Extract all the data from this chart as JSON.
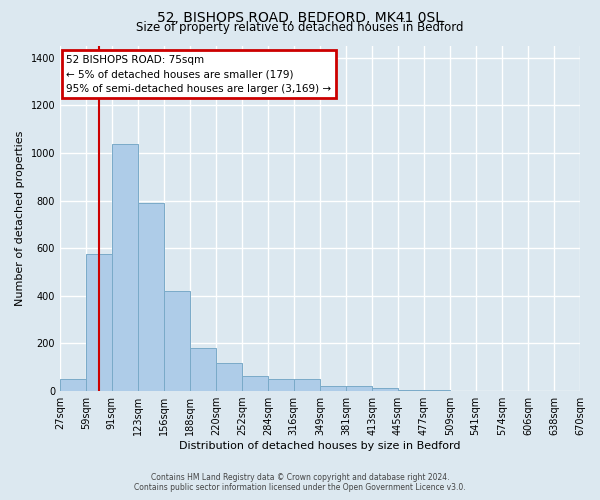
{
  "title1": "52, BISHOPS ROAD, BEDFORD, MK41 0SL",
  "title2": "Size of property relative to detached houses in Bedford",
  "xlabel": "Distribution of detached houses by size in Bedford",
  "ylabel": "Number of detached properties",
  "bin_edges": [
    27,
    59,
    91,
    123,
    156,
    188,
    220,
    252,
    284,
    316,
    349,
    381,
    413,
    445,
    477,
    509,
    541,
    574,
    606,
    638,
    670
  ],
  "bar_heights": [
    50,
    575,
    1040,
    790,
    420,
    180,
    120,
    65,
    50,
    50,
    20,
    20,
    15,
    5,
    5,
    0,
    0,
    0,
    0,
    0
  ],
  "bar_color": "#aecce8",
  "bar_edgecolor": "#7aaac8",
  "vline_x": 75,
  "vline_color": "#cc0000",
  "ylim": [
    0,
    1450
  ],
  "yticks": [
    0,
    200,
    400,
    600,
    800,
    1000,
    1200,
    1400
  ],
  "annotation_title": "52 BISHOPS ROAD: 75sqm",
  "annotation_line1": "← 5% of detached houses are smaller (179)",
  "annotation_line2": "95% of semi-detached houses are larger (3,169) →",
  "annotation_box_edgecolor": "#cc0000",
  "footnote1": "Contains HM Land Registry data © Crown copyright and database right 2024.",
  "footnote2": "Contains public sector information licensed under the Open Government Licence v3.0.",
  "background_color": "#dce8f0",
  "plot_bg_color": "#dce8f0",
  "grid_color": "#c8d8e4",
  "tick_labels": [
    "27sqm",
    "59sqm",
    "91sqm",
    "123sqm",
    "156sqm",
    "188sqm",
    "220sqm",
    "252sqm",
    "284sqm",
    "316sqm",
    "349sqm",
    "381sqm",
    "413sqm",
    "445sqm",
    "477sqm",
    "509sqm",
    "541sqm",
    "574sqm",
    "606sqm",
    "638sqm",
    "670sqm"
  ]
}
